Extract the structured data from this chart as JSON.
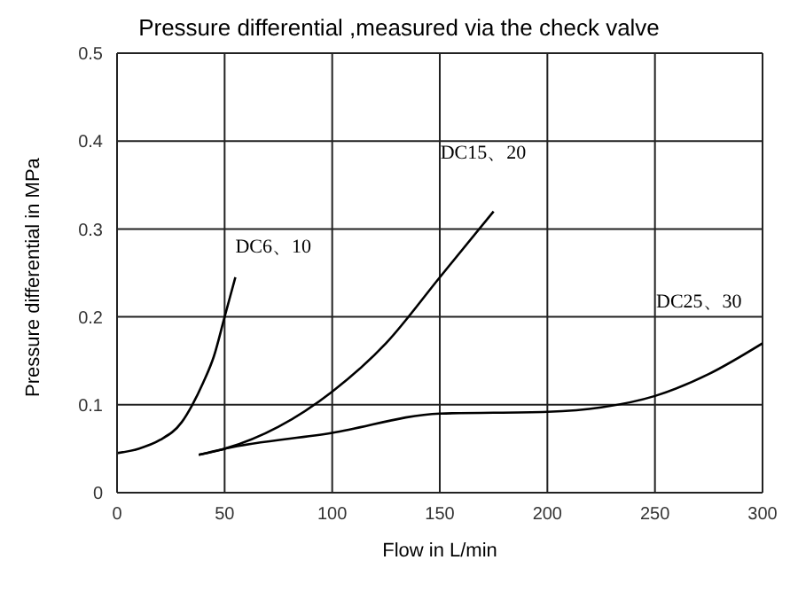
{
  "chart_data": {
    "type": "line",
    "title": "Pressure differential ,measured via the check valve",
    "xlabel": "Flow  in L/min",
    "ylabel": "Pressure differential in MPa",
    "xlim": [
      0,
      300
    ],
    "xticks": [
      0,
      50,
      100,
      150,
      200,
      250,
      300
    ],
    "ylim": [
      0,
      0.5
    ],
    "yticks": [
      0,
      0.1,
      0.2,
      0.3,
      0.4,
      0.5
    ],
    "grid": true,
    "legend": false,
    "marker": "none",
    "line_style": "solid",
    "series": [
      {
        "name": "DC6、10",
        "color": "#000000",
        "x": [
          0,
          10,
          20,
          30,
          35,
          40,
          45,
          50,
          55
        ],
        "values": [
          0.045,
          0.05,
          0.06,
          0.08,
          0.1,
          0.125,
          0.155,
          0.2,
          0.245
        ]
      },
      {
        "name": "DC15、20",
        "color": "#000000",
        "x": [
          38,
          50,
          75,
          100,
          125,
          150,
          175
        ],
        "values": [
          0.043,
          0.05,
          0.075,
          0.115,
          0.17,
          0.245,
          0.32
        ]
      },
      {
        "name": "DC25、30",
        "color": "#000000",
        "x": [
          38,
          50,
          100,
          150,
          200,
          225,
          250,
          275,
          300
        ],
        "values": [
          0.043,
          0.05,
          0.068,
          0.09,
          0.092,
          0.097,
          0.11,
          0.135,
          0.17
        ]
      }
    ]
  }
}
